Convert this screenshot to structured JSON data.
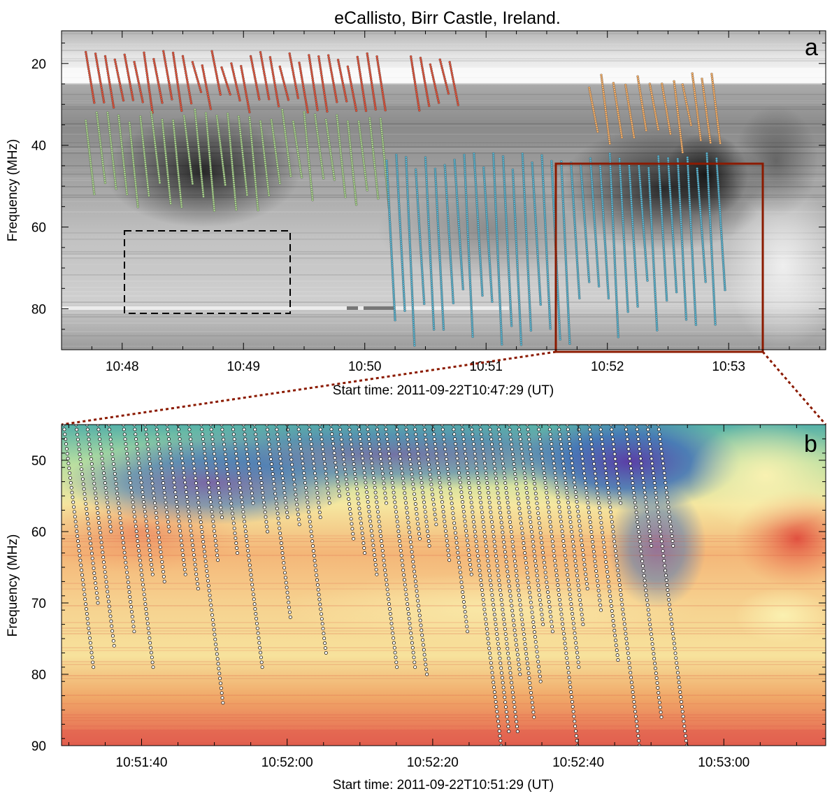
{
  "chart_data": [
    {
      "panel": "a",
      "type": "heatmap",
      "title": "eCallisto, Birr Castle, Ireland.",
      "ylabel": "Frequency (MHz)",
      "xlabel": "Start time: 2011-09-22T10:47:29 (UT)",
      "colormap": "grayscale",
      "x_range_min": [
        47.5,
        53.8
      ],
      "ylim": [
        90,
        12
      ],
      "x_ticks_min": [
        48,
        49,
        50,
        51,
        52,
        53
      ],
      "x_tick_labels": [
        "10:48",
        "10:49",
        "10:50",
        "10:51",
        "10:52",
        "10:53"
      ],
      "y_ticks": [
        20,
        40,
        60,
        80
      ],
      "y_tick_labels": [
        "20",
        "40",
        "60",
        "80"
      ],
      "dashed_box": {
        "t_min": [
          48.3,
          49.35
        ],
        "f_mhz": [
          60,
          81
        ]
      },
      "zoom_box": {
        "t_min": [
          51.5,
          53.1
        ],
        "f_mhz": [
          43,
          90
        ],
        "color": "#8b1a00"
      },
      "series": [
        {
          "color": "#e0533a",
          "f_range_mhz": [
            17,
            32
          ],
          "starts_min": [
            47.7,
            47.78,
            47.86,
            47.94,
            48.02,
            48.1,
            48.18,
            48.26,
            48.34,
            48.42,
            48.5,
            48.58,
            48.66,
            48.74,
            48.82,
            48.9,
            48.98,
            49.06,
            49.14,
            49.22,
            49.3,
            49.38,
            49.46,
            49.54,
            49.62,
            49.7,
            49.78,
            49.86,
            49.94,
            50.02,
            50.1,
            50.38,
            50.46,
            50.54,
            50.62,
            50.7
          ]
        },
        {
          "color": "#a8d08d",
          "f_range_mhz": [
            31,
            56
          ],
          "starts_min": [
            47.7,
            47.79,
            47.88,
            47.97,
            48.06,
            48.15,
            48.24,
            48.33,
            48.42,
            48.51,
            48.6,
            48.69,
            48.78,
            48.87,
            48.96,
            49.05,
            49.14,
            49.23,
            49.32,
            49.41,
            49.5,
            49.59,
            49.68,
            49.77,
            49.86,
            49.95,
            50.04,
            50.13
          ]
        },
        {
          "color": "#5ab4d0",
          "f_range_mhz": [
            42,
            89
          ],
          "starts_min": [
            50.18,
            50.26,
            50.34,
            50.42,
            50.5,
            50.58,
            50.66,
            50.74,
            50.82,
            50.9,
            50.98,
            51.06,
            51.14,
            51.22,
            51.3,
            51.38,
            51.46,
            51.54,
            51.62,
            51.7,
            51.78,
            51.86,
            51.94,
            52.02,
            52.1,
            52.18,
            52.26,
            52.34,
            52.42,
            52.5,
            52.58,
            52.66,
            52.74,
            52.82,
            52.9
          ]
        },
        {
          "color": "#f5b06a",
          "f_range_mhz": [
            22,
            42
          ],
          "starts_min": [
            51.85,
            51.95,
            52.05,
            52.15,
            52.25,
            52.35,
            52.45,
            52.55,
            52.62,
            52.7,
            52.78,
            52.86
          ]
        }
      ]
    },
    {
      "panel": "b",
      "type": "heatmap",
      "ylabel": "Frequency (MHz)",
      "xlabel": "Start time: 2011-09-22T10:51:29 (UT)",
      "colormap": "spectral (purple-blue-green-yellow-orange-red)",
      "x_range_s": [
        89,
        194
      ],
      "ylim": [
        90,
        45
      ],
      "x_ticks_s": [
        100,
        120,
        140,
        160,
        180
      ],
      "x_tick_labels": [
        "10:51:40",
        "10:52:00",
        "10:52:20",
        "10:52:40",
        "10:53:00"
      ],
      "y_ticks": [
        50,
        60,
        70,
        80,
        90
      ],
      "y_tick_labels": [
        "50",
        "60",
        "70",
        "80",
        "90"
      ],
      "burst_marker_color": "#ffffff",
      "bursts": [
        [
          89.3,
          79
        ],
        [
          91,
          70
        ],
        [
          92.5,
          76
        ],
        [
          94,
          60
        ],
        [
          95.5,
          74
        ],
        [
          97.5,
          79
        ],
        [
          99,
          66
        ],
        [
          100.5,
          67
        ],
        [
          102,
          60
        ],
        [
          103.5,
          66
        ],
        [
          105,
          68
        ],
        [
          106.5,
          84
        ],
        [
          108.2,
          64
        ],
        [
          109.5,
          58
        ],
        [
          111,
          63
        ],
        [
          112.5,
          79
        ],
        [
          114,
          56
        ],
        [
          115.5,
          60
        ],
        [
          117.2,
          72
        ],
        [
          118.5,
          58
        ],
        [
          120,
          59
        ],
        [
          121.5,
          77
        ],
        [
          123,
          58
        ],
        [
          124.5,
          56
        ],
        [
          126,
          55
        ],
        [
          127.2,
          61
        ],
        [
          128.5,
          63
        ],
        [
          129.8,
          66
        ],
        [
          131,
          79
        ],
        [
          132.3,
          56
        ],
        [
          133.5,
          79
        ],
        [
          135,
          80
        ],
        [
          136.3,
          61
        ],
        [
          137.5,
          62
        ],
        [
          138.8,
          59
        ],
        [
          140,
          64
        ],
        [
          141.3,
          74
        ],
        [
          142.8,
          66
        ],
        [
          144,
          90
        ],
        [
          145.3,
          88
        ],
        [
          146.5,
          88
        ],
        [
          147.8,
          80
        ],
        [
          149,
          86
        ],
        [
          150.5,
          81
        ],
        [
          151.8,
          73
        ],
        [
          153,
          74
        ],
        [
          154.5,
          90
        ],
        [
          156,
          79
        ],
        [
          157.3,
          73
        ],
        [
          158.5,
          68
        ],
        [
          160,
          71
        ],
        [
          161.5,
          78
        ],
        [
          163,
          90
        ],
        [
          164.5,
          56
        ],
        [
          166.5,
          86
        ],
        [
          168,
          62
        ],
        [
          169.5,
          90
        ],
        [
          171,
          62
        ]
      ]
    }
  ]
}
